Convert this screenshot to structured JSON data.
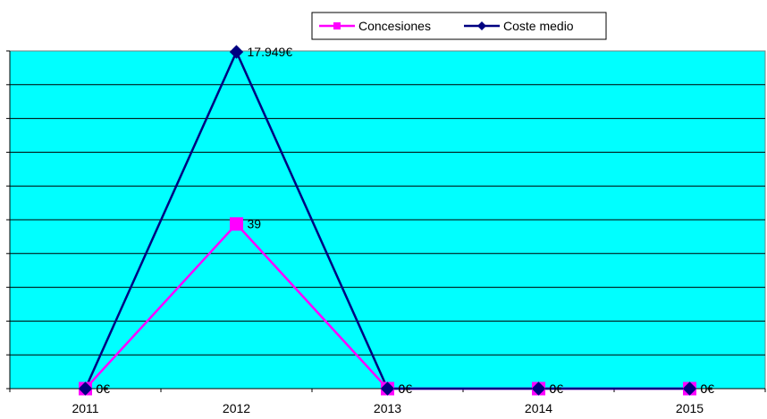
{
  "chart_data": {
    "type": "line",
    "title": "",
    "xlabel": "",
    "ylabel": "",
    "categories": [
      "2011",
      "2012",
      "2013",
      "2014",
      "2015"
    ],
    "series": [
      {
        "name": "Concesiones",
        "color": "#ff00ff",
        "marker": "square",
        "axis": "secondary",
        "values": [
          0,
          39,
          0,
          0,
          0
        ],
        "labels": [
          "0",
          "39",
          "0",
          "0",
          "0"
        ]
      },
      {
        "name": "Coste medio",
        "color": "#000080",
        "marker": "diamond",
        "axis": "primary",
        "values": [
          0,
          17949,
          0,
          0,
          0
        ],
        "labels": [
          "0€",
          "17.949€",
          "0€",
          "0€",
          "0€"
        ]
      }
    ],
    "plot_background": "#00ffff",
    "grid": true,
    "legend_position": "top-right",
    "primary_ylim": [
      0,
      18000
    ],
    "secondary_ylim": [
      0,
      80
    ]
  }
}
